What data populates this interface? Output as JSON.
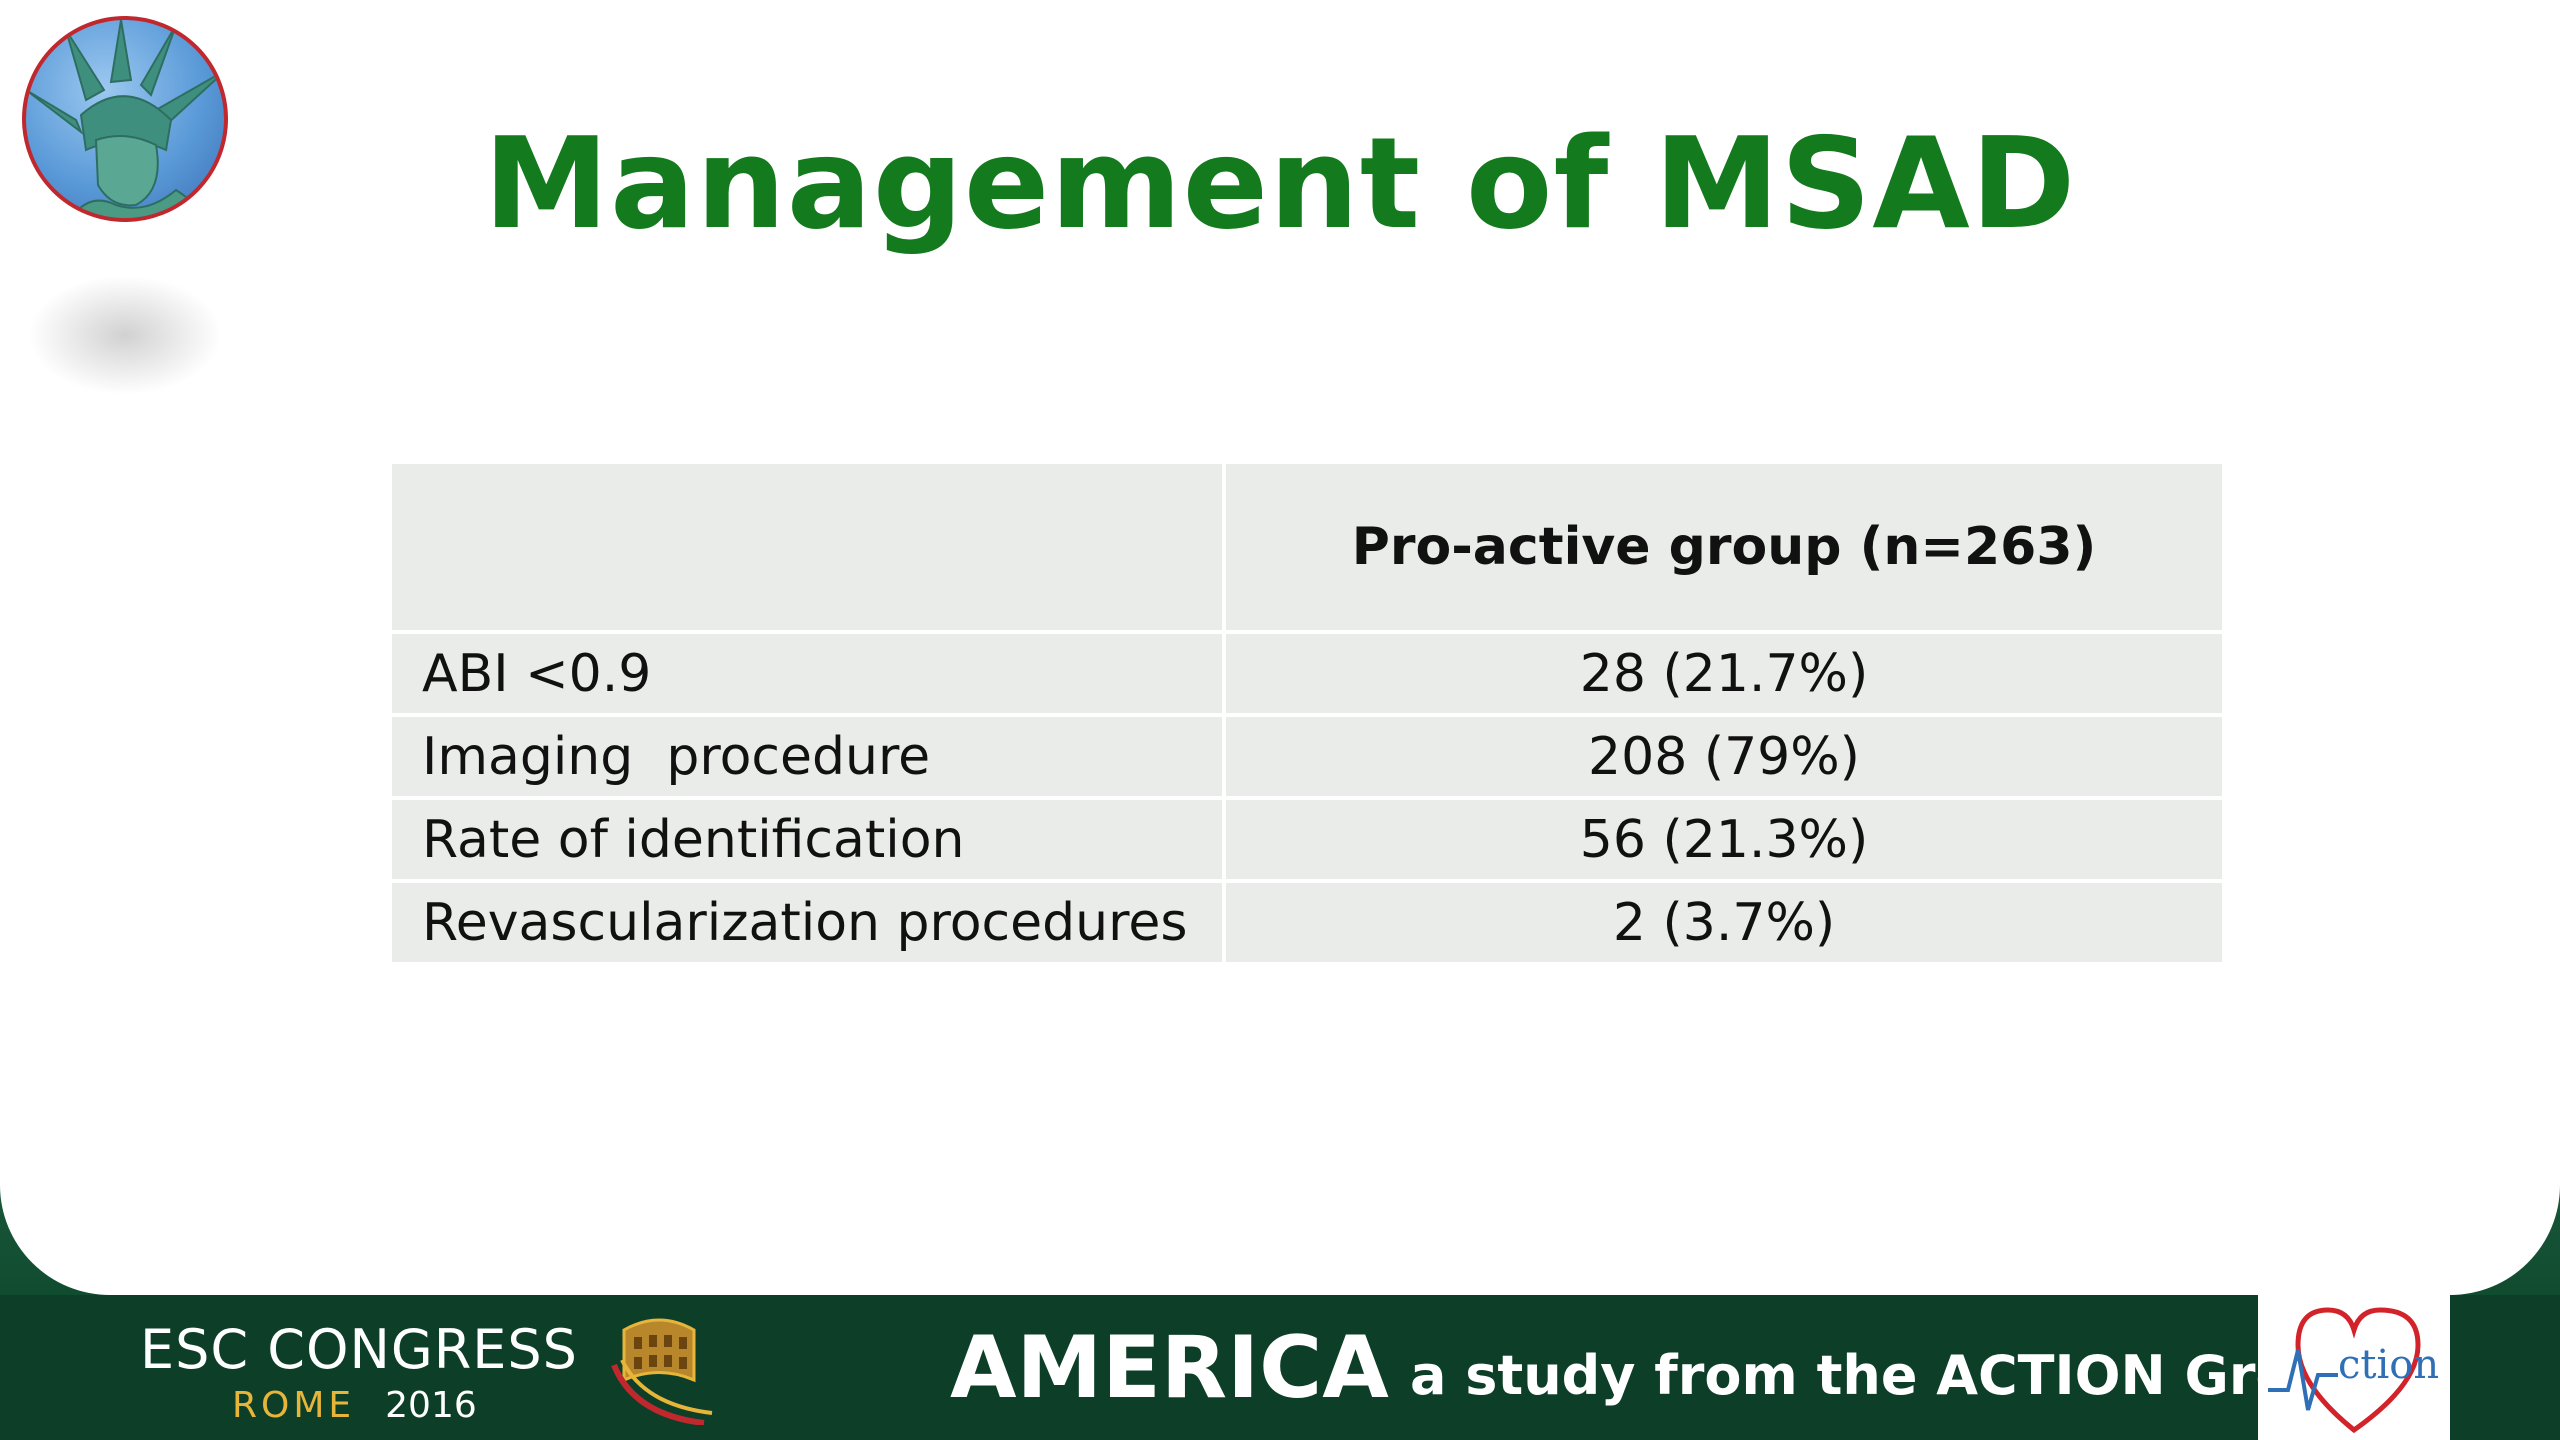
{
  "slide": {
    "title": "Management of MSAD"
  },
  "table": {
    "header": [
      "",
      "Pro-active group (n=263)"
    ],
    "rows": [
      [
        "ABI <0.9",
        "28 (21.7%)"
      ],
      [
        "Imaging  procedure",
        "208 (79%)"
      ],
      [
        "Rate of identification",
        "56 (21.3%)"
      ],
      [
        "Revascularization procedures",
        "2 (3.7%)"
      ]
    ]
  },
  "footer": {
    "esc_congress": "ESC CONGRESS",
    "esc_city": "ROME",
    "esc_year": "2016",
    "america": "AMERICA",
    "subtitle": "a study from the ACTION Group",
    "action_logo_text": "ction"
  },
  "colors": {
    "title": "#137a1e",
    "band": "#0d3f28",
    "table_cell": "#e9ece8",
    "logo_ring": "#c0282e",
    "action_blue": "#2f6fb6",
    "heart_red": "#d2232a"
  },
  "icons": [
    "statue-of-liberty-logo",
    "colosseum-icon",
    "action-heart-logo"
  ]
}
